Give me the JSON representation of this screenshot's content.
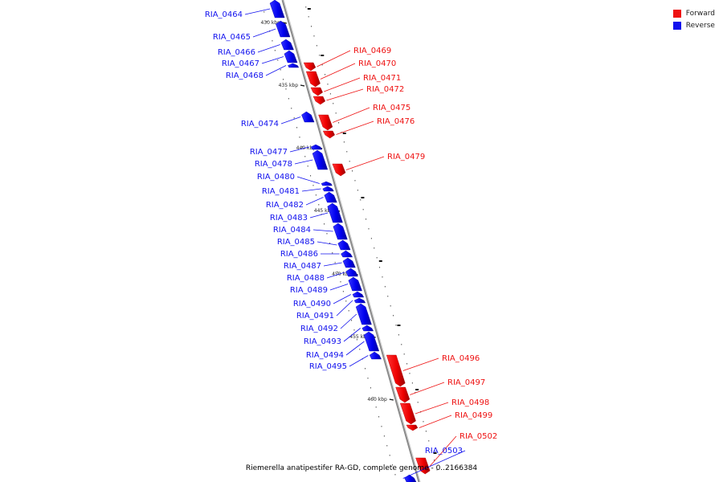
{
  "legend": {
    "forward_label": "Forward",
    "reverse_label": "Reverse",
    "forward_color": "#ee1111",
    "reverse_color": "#1111ee"
  },
  "footer": "Riemerella anatipestifer RA-GD, complete genome - 0..2166384",
  "ticks": [
    "430 kbp",
    "435 kbp",
    "440 kbp",
    "445 kbp",
    "450 kbp",
    "455 kbp",
    "460 kbp"
  ],
  "genes": [
    {
      "name": "RIA_0464",
      "strand": "reverse"
    },
    {
      "name": "RIA_0465",
      "strand": "reverse"
    },
    {
      "name": "RIA_0466",
      "strand": "reverse"
    },
    {
      "name": "RIA_0467",
      "strand": "reverse"
    },
    {
      "name": "RIA_0468",
      "strand": "reverse"
    },
    {
      "name": "RIA_0469",
      "strand": "forward"
    },
    {
      "name": "RIA_0470",
      "strand": "forward"
    },
    {
      "name": "RIA_0471",
      "strand": "forward"
    },
    {
      "name": "RIA_0472",
      "strand": "forward"
    },
    {
      "name": "RIA_0474",
      "strand": "reverse"
    },
    {
      "name": "RIA_0475",
      "strand": "forward"
    },
    {
      "name": "RIA_0476",
      "strand": "forward"
    },
    {
      "name": "RIA_0477",
      "strand": "reverse"
    },
    {
      "name": "RIA_0478",
      "strand": "reverse"
    },
    {
      "name": "RIA_0479",
      "strand": "forward"
    },
    {
      "name": "RIA_0480",
      "strand": "reverse"
    },
    {
      "name": "RIA_0481",
      "strand": "reverse"
    },
    {
      "name": "RIA_0482",
      "strand": "reverse"
    },
    {
      "name": "RIA_0483",
      "strand": "reverse"
    },
    {
      "name": "RIA_0484",
      "strand": "reverse"
    },
    {
      "name": "RIA_0485",
      "strand": "reverse"
    },
    {
      "name": "RIA_0486",
      "strand": "reverse"
    },
    {
      "name": "RIA_0487",
      "strand": "reverse"
    },
    {
      "name": "RIA_0488",
      "strand": "reverse"
    },
    {
      "name": "RIA_0489",
      "strand": "reverse"
    },
    {
      "name": "RIA_0490",
      "strand": "reverse"
    },
    {
      "name": "RIA_0491",
      "strand": "reverse"
    },
    {
      "name": "RIA_0492",
      "strand": "reverse"
    },
    {
      "name": "RIA_0493",
      "strand": "reverse"
    },
    {
      "name": "RIA_0494",
      "strand": "reverse"
    },
    {
      "name": "RIA_0495",
      "strand": "reverse"
    },
    {
      "name": "RIA_0496",
      "strand": "forward"
    },
    {
      "name": "RIA_0497",
      "strand": "forward"
    },
    {
      "name": "RIA_0498",
      "strand": "forward"
    },
    {
      "name": "RIA_0499",
      "strand": "forward"
    },
    {
      "name": "RIA_0502",
      "strand": "forward"
    },
    {
      "name": "RIA_0503",
      "strand": "reverse"
    }
  ]
}
